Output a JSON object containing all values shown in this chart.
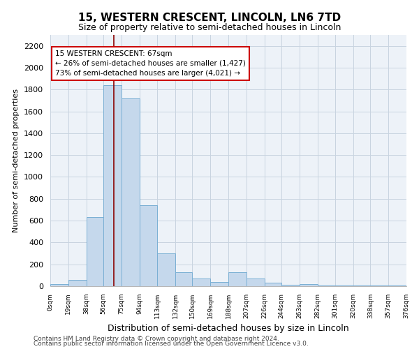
{
  "title": "15, WESTERN CRESCENT, LINCOLN, LN6 7TD",
  "subtitle": "Size of property relative to semi-detached houses in Lincoln",
  "xlabel": "Distribution of semi-detached houses by size in Lincoln",
  "ylabel": "Number of semi-detached properties",
  "bar_color": "#c5d8ec",
  "bar_edge_color": "#7aafd4",
  "bin_edges": [
    0,
    19,
    38,
    56,
    75,
    94,
    113,
    132,
    150,
    169,
    188,
    207,
    226,
    244,
    263,
    282,
    301,
    320,
    338,
    357,
    376
  ],
  "bin_labels": [
    "0sqm",
    "19sqm",
    "38sqm",
    "56sqm",
    "75sqm",
    "94sqm",
    "113sqm",
    "132sqm",
    "150sqm",
    "169sqm",
    "188sqm",
    "207sqm",
    "226sqm",
    "244sqm",
    "263sqm",
    "282sqm",
    "301sqm",
    "320sqm",
    "338sqm",
    "357sqm",
    "376sqm"
  ],
  "counts": [
    20,
    60,
    630,
    1840,
    1720,
    740,
    300,
    130,
    70,
    40,
    130,
    70,
    35,
    15,
    20,
    5,
    5,
    5,
    5,
    5
  ],
  "red_line_x": 67,
  "annotation_title": "15 WESTERN CRESCENT: 67sqm",
  "annotation_line1": "← 26% of semi-detached houses are smaller (1,427)",
  "annotation_line2": "73% of semi-detached houses are larger (4,021) →",
  "ylim": [
    0,
    2300
  ],
  "yticks": [
    0,
    200,
    400,
    600,
    800,
    1000,
    1200,
    1400,
    1600,
    1800,
    2000,
    2200
  ],
  "footer1": "Contains HM Land Registry data © Crown copyright and database right 2024.",
  "footer2": "Contains public sector information licensed under the Open Government Licence v3.0.",
  "fig_background": "#ffffff",
  "plot_background": "#edf2f8"
}
